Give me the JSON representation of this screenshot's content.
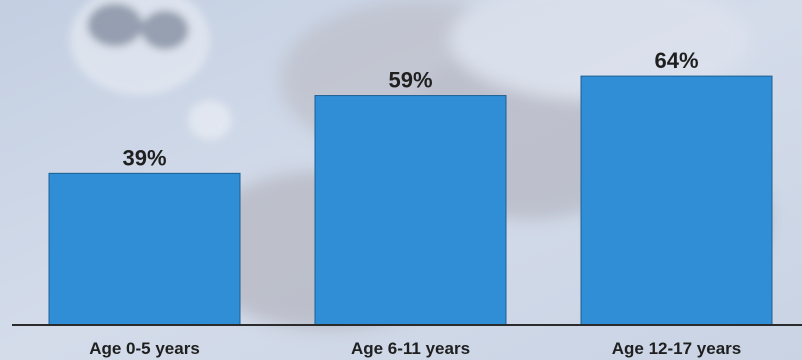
{
  "chart_data": {
    "type": "bar",
    "categories": [
      "Age 0-5 years",
      "Age 6-11 years",
      "Age 12-17 years"
    ],
    "values": [
      39,
      59,
      64
    ],
    "data_labels": [
      "39%",
      "59%",
      "64%"
    ],
    "title": "",
    "xlabel": "",
    "ylabel": "",
    "ylim": [
      0,
      72
    ],
    "grid": false,
    "legend": "none",
    "bar_color": "#2f8ed6",
    "axis_color": "#2b2b2b"
  }
}
